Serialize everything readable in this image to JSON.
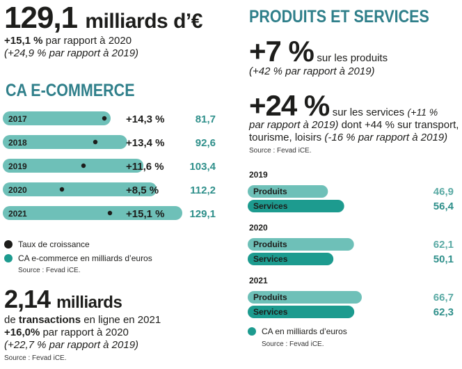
{
  "header": {
    "big_value": "129,1",
    "big_unit": "milliards d’€",
    "growth_2020": "+15,1 %",
    "growth_2020_text": "par rapport à 2020",
    "growth_2019_text": "(+24,9 % par rapport à 2019)"
  },
  "ecommerce": {
    "title": "CA E-COMMERCE",
    "legend_growth": "Taux de croissance",
    "legend_ca": "CA e-commerce en milliards d’euros",
    "source": "Source : Fevad iCE."
  },
  "transactions": {
    "value": "2,14",
    "unit": "milliards",
    "line1_pre": "de",
    "line1_bold": "transactions",
    "line1_post": "en ligne en 2021",
    "line2_bold": "+16,0%",
    "line2_post": "par rapport à 2020",
    "line3": "(+22,7 % par rapport à 2019)",
    "source": "Source : Fevad iCE."
  },
  "products_services": {
    "title": "PRODUITS ET SERVICES",
    "products_pct": "+7 %",
    "products_text": "sur les produits",
    "products_2019": "(+42 % par rapport à 2019)",
    "services_pct": "+24 %",
    "services_line1_text": "sur les services",
    "services_line1_ital": "(+11 %",
    "services_line2_ital": "par rapport à 2019)",
    "services_line2_text": "dont +44 % sur transport,",
    "services_line3_text": "tourisme, loisirs",
    "services_line3_ital": "(-16 % par rapport à 2019)",
    "source": "Source : Fevad iCE.",
    "legend": "CA en milliards d’euros",
    "source2": "Source : Fevad iCE."
  },
  "colors": {
    "teal_dark": "#1d9b8f",
    "teal_light": "#6ec0b8",
    "title_blue": "#2f7f8a",
    "text": "#1d1d1b"
  },
  "chart_data": [
    {
      "type": "bar",
      "title": "CA E-COMMERCE",
      "categories": [
        "2017",
        "2018",
        "2019",
        "2020",
        "2021"
      ],
      "series": [
        {
          "name": "CA e-commerce en milliards d’euros",
          "values": [
            81.7,
            92.6,
            103.4,
            112.2,
            129.1
          ],
          "labels": [
            "81,7",
            "92,6",
            "103,4",
            "112,2",
            "129,1"
          ]
        },
        {
          "name": "Taux de croissance",
          "values": [
            14.3,
            13.4,
            11.6,
            8.5,
            15.1
          ],
          "labels": [
            "+14,3 %",
            "+13,4 %",
            "+11,6 %",
            "+8,5 %",
            "+15,1 %"
          ]
        }
      ],
      "xlim": [
        0,
        130
      ]
    },
    {
      "type": "bar",
      "title": "CA en milliards d’euros",
      "groups": [
        {
          "year": "2019",
          "items": [
            {
              "name": "Produits",
              "value": 46.9,
              "label": "46,9"
            },
            {
              "name": "Services",
              "value": 56.4,
              "label": "56,4"
            }
          ]
        },
        {
          "year": "2020",
          "items": [
            {
              "name": "Produits",
              "value": 62.1,
              "label": "62,1"
            },
            {
              "name": "Services",
              "value": 50.1,
              "label": "50,1"
            }
          ]
        },
        {
          "year": "2021",
          "items": [
            {
              "name": "Produits",
              "value": 66.7,
              "label": "66,7"
            },
            {
              "name": "Services",
              "value": 62.3,
              "label": "62,3"
            }
          ]
        }
      ],
      "xlim": [
        0,
        70
      ]
    }
  ]
}
